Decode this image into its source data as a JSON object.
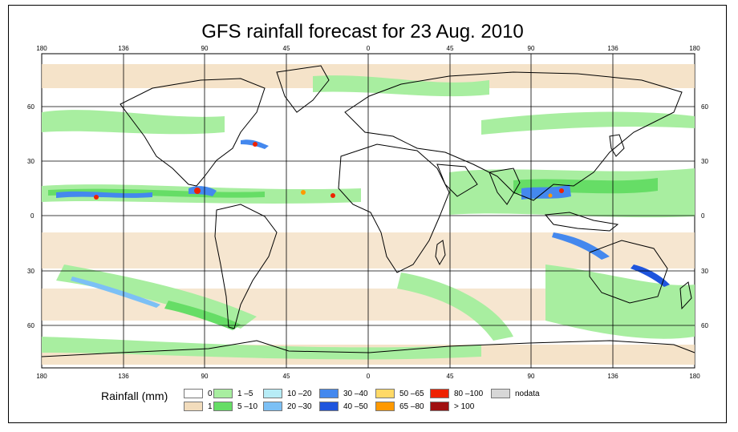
{
  "title": "GFS rainfall forecast for 23 Aug. 2010",
  "axes": {
    "top_lon_labels": [
      "180",
      "136",
      "90",
      "45",
      "0",
      "45",
      "90",
      "136",
      "180"
    ],
    "bottom_lon_labels": [
      "180",
      "136",
      "90",
      "45",
      "0",
      "45",
      "90",
      "136",
      "180"
    ],
    "left_lat_labels": [
      "60",
      "30",
      "0",
      "30",
      "60"
    ],
    "right_lat_labels": [
      "60",
      "30",
      "0",
      "30",
      "60"
    ]
  },
  "legend": {
    "title": "Rainfall (mm)",
    "items": [
      {
        "label": "0",
        "color": "#ffffff"
      },
      {
        "label": "1",
        "color": "#f2dcbc"
      },
      {
        "label": "1 –5",
        "color": "#a8eea0"
      },
      {
        "label": "5 –10",
        "color": "#66dd66"
      },
      {
        "label": "10 –20",
        "color": "#b7ecf6"
      },
      {
        "label": "20 –30",
        "color": "#7cc0f5"
      },
      {
        "label": "30 –40",
        "color": "#4488ee"
      },
      {
        "label": "40 –50",
        "color": "#1f55dd"
      },
      {
        "label": "50 –65",
        "color": "#ffd966"
      },
      {
        "label": "65 –80",
        "color": "#ff9900"
      },
      {
        "label": "80 –100",
        "color": "#ee2200"
      },
      {
        "label": "> 100",
        "color": "#a01010"
      },
      {
        "label": "nodata",
        "color": "#d7d7d7"
      }
    ]
  },
  "colors": {
    "land_outline": "#000000",
    "sand": "#f2dcbc",
    "green": "#a8eea0",
    "green_dark": "#66dd66",
    "blue_light": "#b7ecf6",
    "blue": "#4488ee"
  }
}
